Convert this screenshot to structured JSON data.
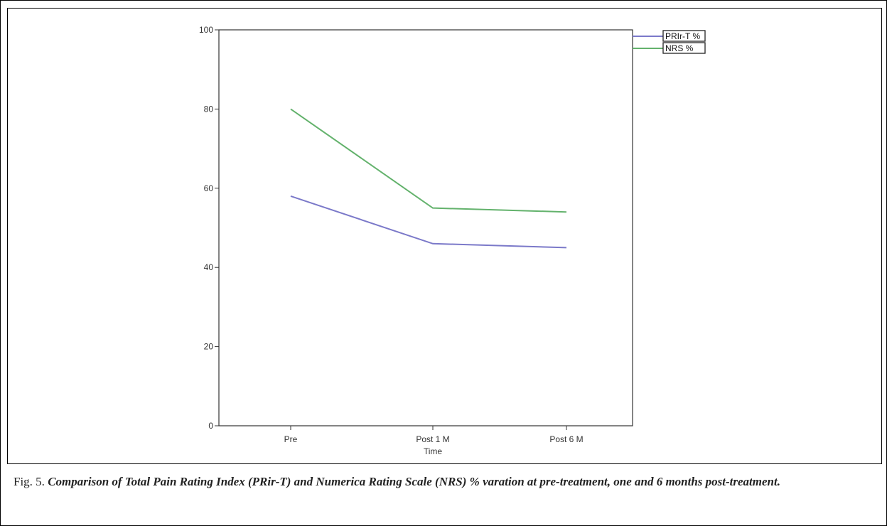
{
  "chart_data": {
    "type": "line",
    "categories": [
      "Pre",
      "Post 1 M",
      "Post 6 M"
    ],
    "xlabel": "Time",
    "ylabel": "",
    "ylim": [
      0,
      100
    ],
    "yticks": [
      0,
      20,
      40,
      60,
      80,
      100
    ],
    "grid": false,
    "legend_position": "top-right",
    "series": [
      {
        "name": "PRIr-T %",
        "values": [
          58,
          46,
          45
        ],
        "color": "#7b79c9"
      },
      {
        "name": "NRS %",
        "values": [
          80,
          55,
          54
        ],
        "color": "#63b26c"
      }
    ]
  },
  "caption": {
    "label": "Fig. 5.",
    "text": "Comparison of Total Pain Rating Index (PRir-T) and Numerica Rating Scale (NRS) % varation at pre-treatment, one and 6 months post-treatment."
  }
}
